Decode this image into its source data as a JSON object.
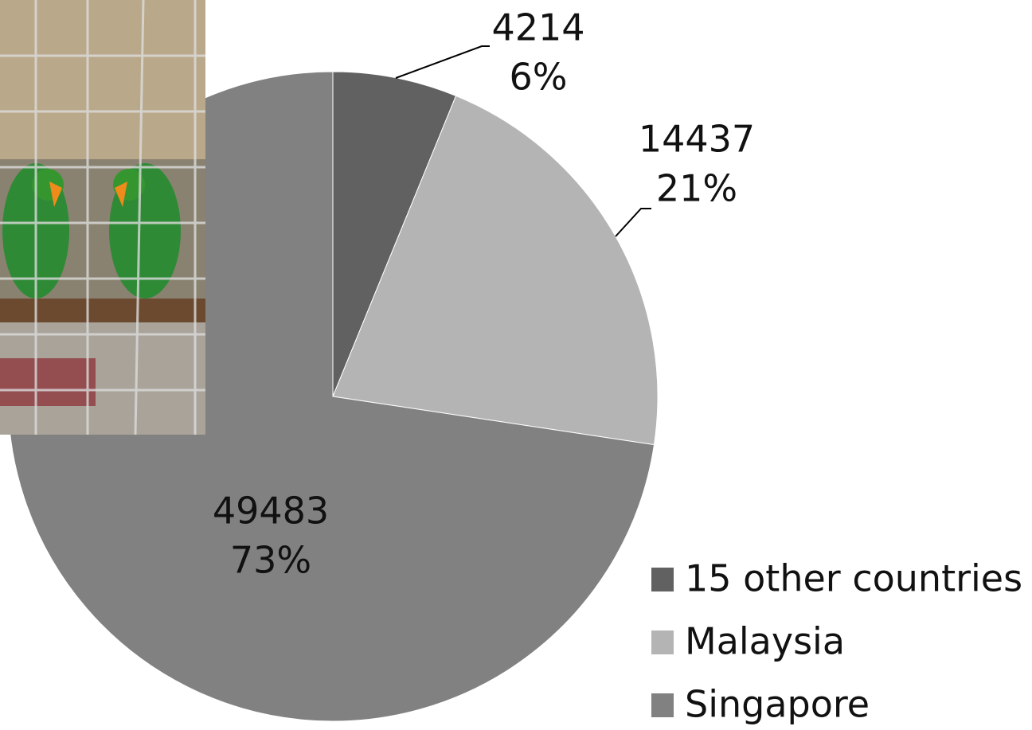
{
  "chart_data": {
    "type": "pie",
    "categories": [
      "15 other countries",
      "Malaysia",
      "Singapore"
    ],
    "values": [
      4214,
      14437,
      49483
    ],
    "percent_labels": [
      "6%",
      "21%",
      "73%"
    ],
    "colors": [
      "#616161",
      "#b4b4b4",
      "#818181"
    ],
    "legend": "right"
  }
}
